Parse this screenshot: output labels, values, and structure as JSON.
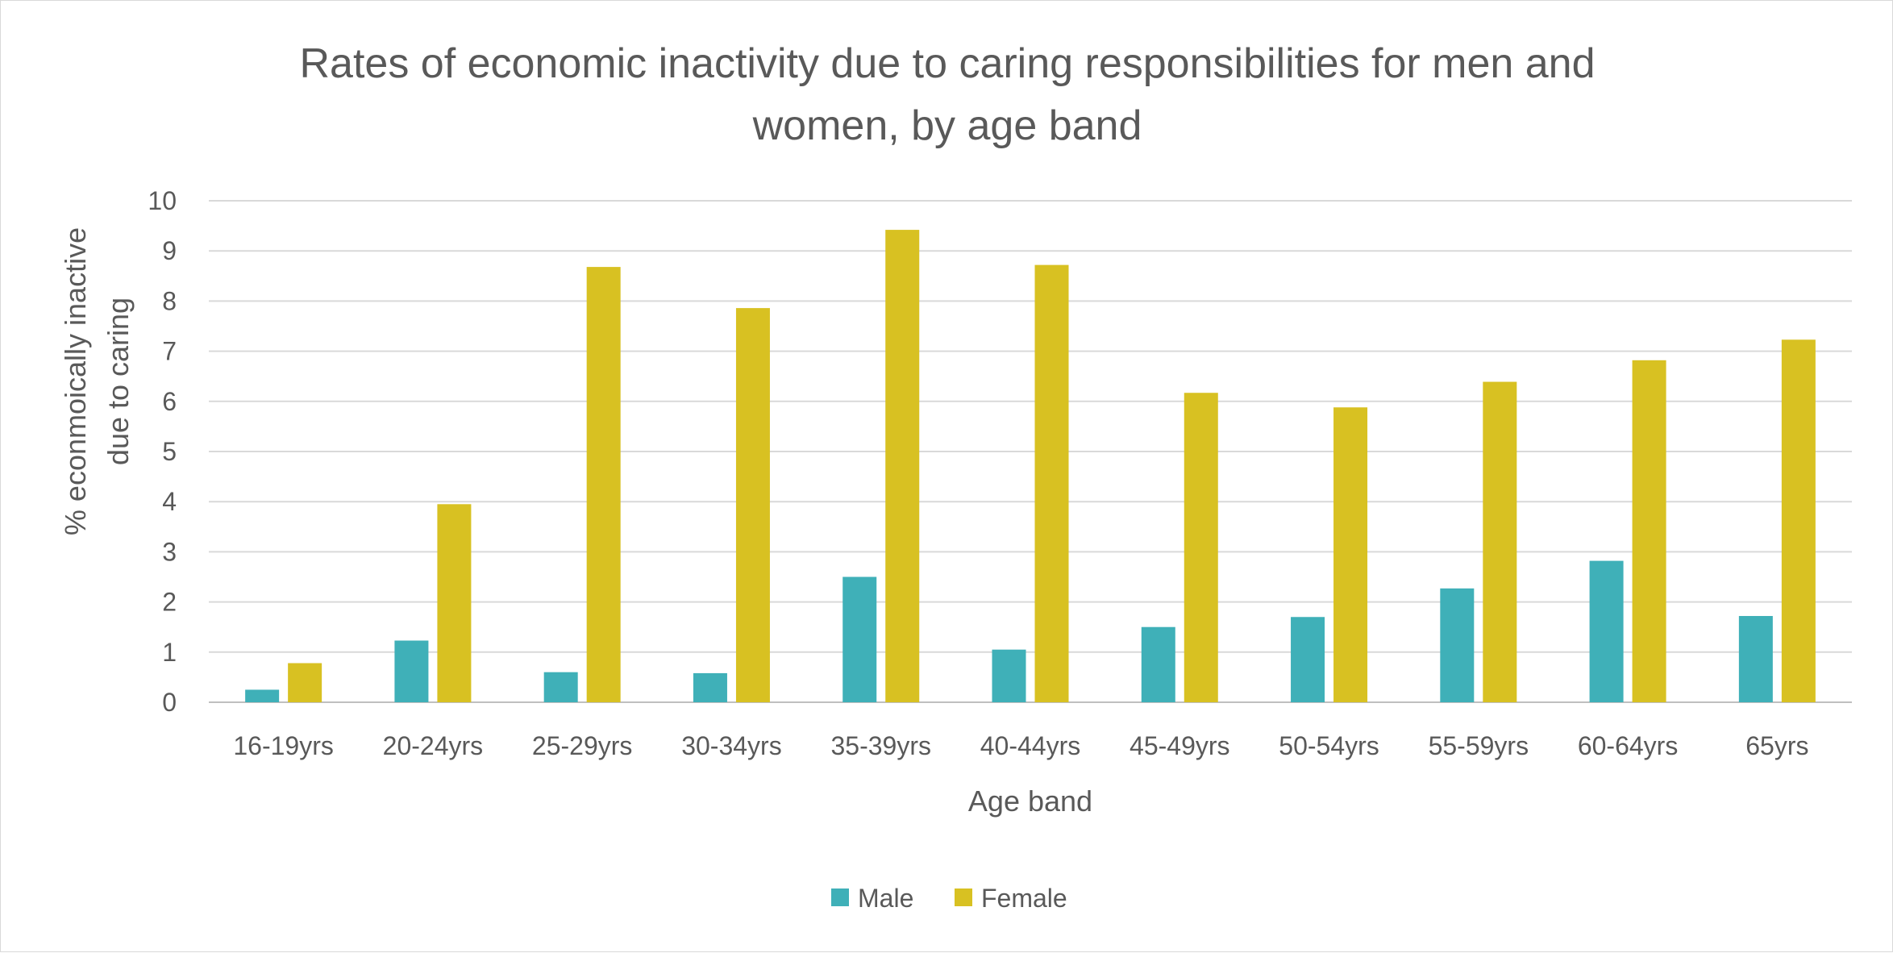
{
  "chart_data": {
    "type": "bar",
    "title_lines": [
      "Rates of economic inactivity due to caring responsibilities for men and",
      "women, by age band"
    ],
    "xlabel": "Age band",
    "ylabel_lines": [
      "% econmoically inactive",
      "due to caring"
    ],
    "categories": [
      "16-19yrs",
      "20-24yrs",
      "25-29yrs",
      "30-34yrs",
      "35-39yrs",
      "40-44yrs",
      "45-49yrs",
      "50-54yrs",
      "55-59yrs",
      "60-64yrs",
      "65yrs"
    ],
    "series": [
      {
        "name": "Male",
        "color": "#3fb0b8",
        "values": [
          0.25,
          1.23,
          0.6,
          0.58,
          2.5,
          1.05,
          1.5,
          1.7,
          2.27,
          2.82,
          1.72
        ]
      },
      {
        "name": "Female",
        "color": "#d8c122",
        "values": [
          0.78,
          3.95,
          8.68,
          7.86,
          9.42,
          8.72,
          6.17,
          5.88,
          6.39,
          6.82,
          7.23
        ]
      }
    ],
    "ylim": [
      0,
      10
    ],
    "yticks": [
      "0",
      "1",
      "2",
      "3",
      "4",
      "5",
      "6",
      "7",
      "8",
      "9",
      "10"
    ],
    "grid": true,
    "legend_position": "bottom"
  }
}
